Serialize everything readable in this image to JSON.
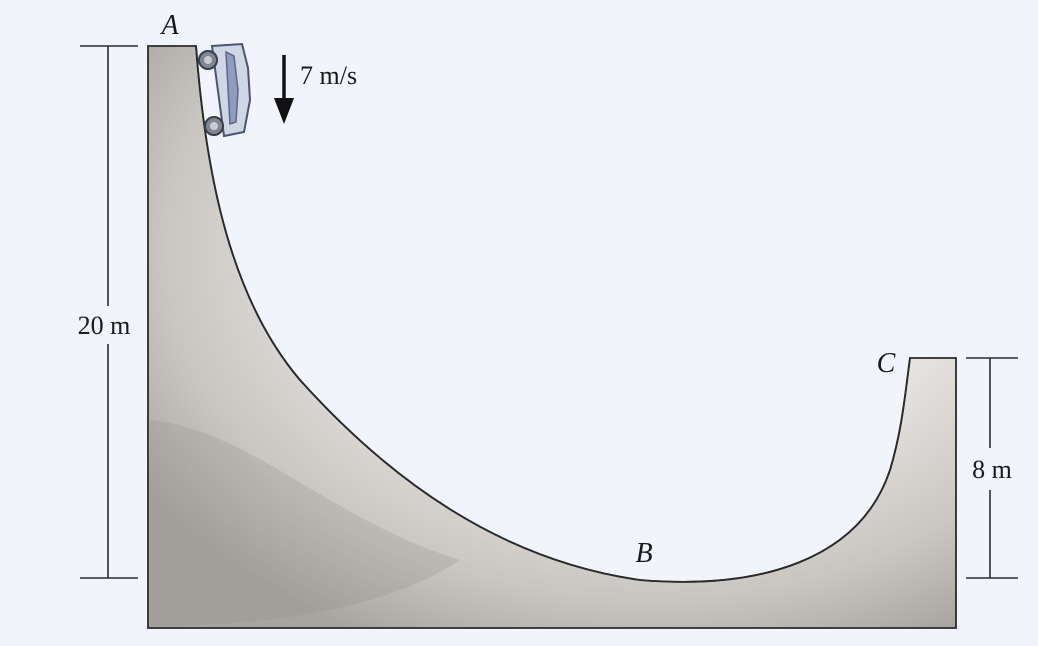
{
  "diagram": {
    "points": {
      "a": "A",
      "b": "B",
      "c": "C"
    },
    "velocity": {
      "label": "7 m/s",
      "direction": "down"
    },
    "dimensions": {
      "left_height": "20 m",
      "right_height": "8 m"
    },
    "icons": {
      "skateboard": "skateboard-icon",
      "arrow": "arrow-down-icon"
    },
    "colors": {
      "background": "#f1f4fa",
      "ramp_light": "#ffffff",
      "ramp_dark": "#a8a4a0",
      "outline": "#2a2a2a"
    }
  }
}
